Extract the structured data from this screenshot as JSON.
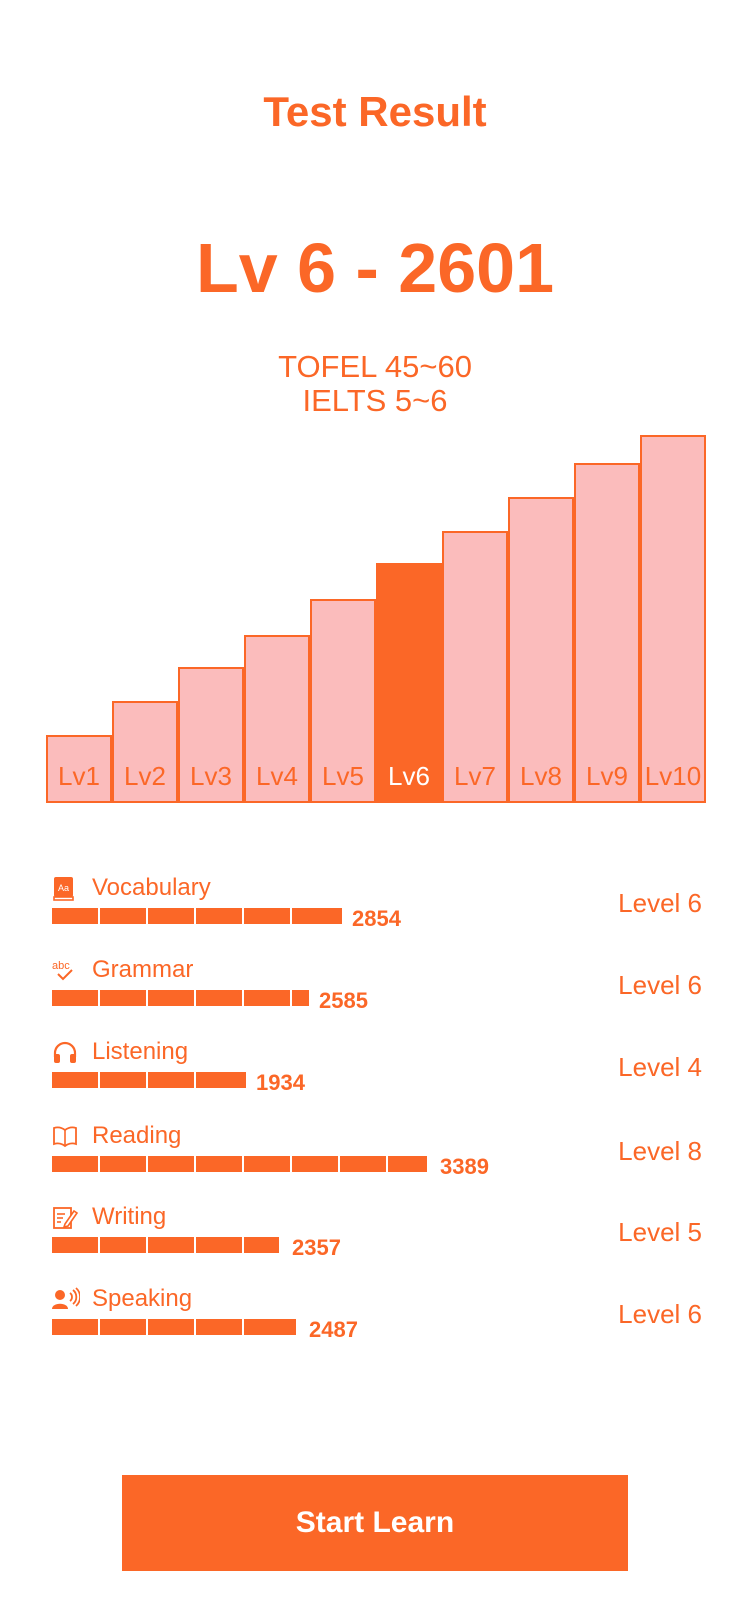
{
  "header": {
    "title": "Test Result"
  },
  "result": {
    "score_text": "Lv 6 - 2601",
    "tofel": "TOFEL 45~60",
    "ielts": "IELTS 5~6"
  },
  "colors": {
    "accent": "#fb6727",
    "bar_fill": "#fbbcbc",
    "white": "#ffffff"
  },
  "chart_data": {
    "type": "bar",
    "categories": [
      "Lv1",
      "Lv2",
      "Lv3",
      "Lv4",
      "Lv5",
      "Lv6",
      "Lv7",
      "Lv8",
      "Lv9",
      "Lv10"
    ],
    "values": [
      1,
      2,
      3,
      4,
      5,
      6,
      7,
      8,
      9,
      10
    ],
    "highlight": "Lv6",
    "title": "",
    "xlabel": "",
    "ylabel": ""
  },
  "skills": [
    {
      "name": "Vocabulary",
      "icon": "dictionary-icon",
      "score": "2854",
      "level": "Level 6"
    },
    {
      "name": "Grammar",
      "icon": "abc-check-icon",
      "score": "2585",
      "level": "Level 6"
    },
    {
      "name": "Listening",
      "icon": "headphones-icon",
      "score": "1934",
      "level": "Level 4"
    },
    {
      "name": "Reading",
      "icon": "open-book-icon",
      "score": "3389",
      "level": "Level 8"
    },
    {
      "name": "Writing",
      "icon": "pencil-note-icon",
      "score": "2357",
      "level": "Level 5"
    },
    {
      "name": "Speaking",
      "icon": "speaking-person-icon",
      "score": "2487",
      "level": "Level 6"
    }
  ],
  "actions": {
    "start_label": "Start Learn"
  }
}
